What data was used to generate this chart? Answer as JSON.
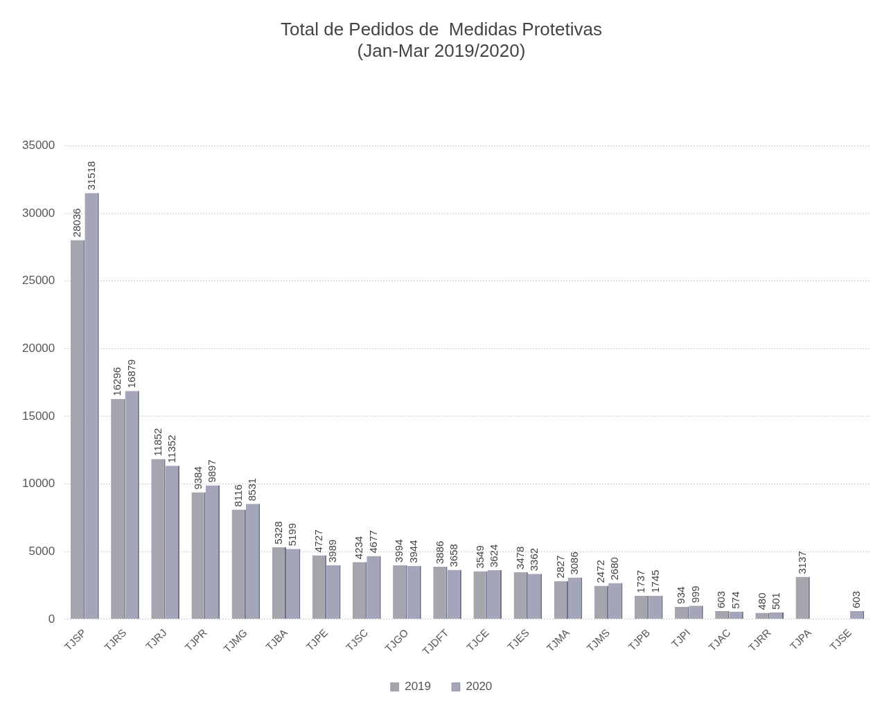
{
  "chart_data": {
    "type": "bar",
    "title": "Total de Pedidos de  Medidas Protetivas",
    "subtitle": "(Jan-Mar 2019/2020)",
    "categories": [
      "TJSP",
      "TJRS",
      "TJRJ",
      "TJPR",
      "TJMG",
      "TJBA",
      "TJPE",
      "TJSC",
      "TJGO",
      "TJDFT",
      "TJCE",
      "TJES",
      "TJMA",
      "TJMS",
      "TJPB",
      "TJPI",
      "TJAC",
      "TJRR",
      "TJPA",
      "TJSE"
    ],
    "series": [
      {
        "name": "2019",
        "color": "#a4a5ad",
        "values": [
          28036,
          16296,
          11852,
          9384,
          8116,
          5328,
          4727,
          4234,
          3994,
          3886,
          3549,
          3478,
          2827,
          2472,
          1737,
          934,
          603,
          480,
          3137,
          null
        ]
      },
      {
        "name": "2020",
        "color": "#a3a5b9",
        "values": [
          31518,
          16879,
          11352,
          9897,
          8531,
          5199,
          3989,
          4677,
          3944,
          3658,
          3624,
          3362,
          3086,
          2680,
          1745,
          999,
          574,
          501,
          null,
          603
        ]
      }
    ],
    "ylim": [
      0,
      35000
    ],
    "yticks": [
      0,
      5000,
      10000,
      15000,
      20000,
      25000,
      30000,
      35000
    ],
    "grid": "y",
    "legend": "bottom",
    "data_labels": true
  }
}
